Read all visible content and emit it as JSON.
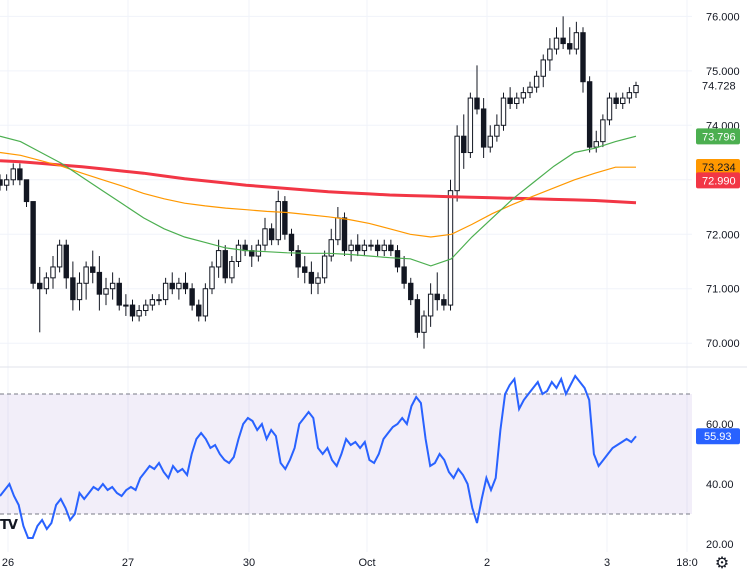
{
  "chart_data": [
    {
      "type": "candlestick",
      "ylim": [
        69.6,
        76.3
      ],
      "y_ticks": [
        "76.000",
        "75.000",
        "74.000",
        "72.000",
        "71.000",
        "70.000"
      ],
      "price_tags": [
        {
          "label": "74.728",
          "value": 74.728,
          "color": "#ffffff",
          "text_color": "#131722"
        },
        {
          "label": "73.796",
          "value": 73.796,
          "color": "#4caf50",
          "text_color": "#ffffff"
        },
        {
          "label": "73.234",
          "value": 73.234,
          "color": "#ff9800",
          "text_color": "#131722"
        },
        {
          "label": "72.990",
          "value": 72.99,
          "color": "#f23645",
          "text_color": "#ffffff"
        }
      ],
      "x_ticks": [
        "26",
        "27",
        "30",
        "Oct",
        "2",
        "3",
        "18:0"
      ],
      "candles": [
        [
          73.0,
          73.1,
          72.8,
          72.9
        ],
        [
          72.9,
          73.1,
          72.8,
          73.0
        ],
        [
          73.0,
          73.3,
          72.9,
          73.2
        ],
        [
          73.2,
          73.3,
          72.9,
          73.0
        ],
        [
          73.0,
          73.0,
          72.5,
          72.6
        ],
        [
          72.6,
          72.6,
          71.0,
          71.1
        ],
        [
          71.1,
          71.4,
          70.2,
          71.0
        ],
        [
          71.0,
          71.3,
          70.9,
          71.2
        ],
        [
          71.2,
          71.6,
          71.0,
          71.4
        ],
        [
          71.4,
          71.9,
          71.3,
          71.8
        ],
        [
          71.8,
          71.9,
          71.0,
          71.2
        ],
        [
          71.2,
          71.5,
          70.6,
          70.8
        ],
        [
          70.8,
          71.3,
          70.6,
          71.1
        ],
        [
          71.1,
          71.5,
          70.8,
          71.4
        ],
        [
          71.4,
          71.7,
          71.1,
          71.3
        ],
        [
          71.3,
          71.6,
          70.6,
          70.9
        ],
        [
          70.9,
          71.2,
          70.7,
          71.0
        ],
        [
          71.0,
          71.3,
          70.8,
          71.1
        ],
        [
          71.1,
          71.2,
          70.6,
          70.7
        ],
        [
          70.7,
          70.9,
          70.5,
          70.7
        ],
        [
          70.7,
          70.8,
          70.4,
          70.5
        ],
        [
          70.5,
          70.7,
          70.4,
          70.6
        ],
        [
          70.6,
          70.8,
          70.5,
          70.7
        ],
        [
          70.7,
          70.9,
          70.6,
          70.8
        ],
        [
          70.8,
          70.9,
          70.7,
          70.8
        ],
        [
          70.8,
          71.2,
          70.7,
          71.1
        ],
        [
          71.1,
          71.3,
          70.9,
          71.0
        ],
        [
          71.0,
          71.2,
          70.8,
          71.1
        ],
        [
          71.1,
          71.3,
          70.9,
          71.0
        ],
        [
          71.0,
          71.1,
          70.6,
          70.7
        ],
        [
          70.7,
          70.8,
          70.4,
          70.5
        ],
        [
          70.5,
          71.1,
          70.4,
          71.0
        ],
        [
          71.0,
          71.5,
          70.9,
          71.4
        ],
        [
          71.4,
          71.9,
          71.2,
          71.7
        ],
        [
          71.7,
          71.8,
          71.1,
          71.2
        ],
        [
          71.2,
          71.6,
          71.1,
          71.5
        ],
        [
          71.5,
          71.9,
          71.4,
          71.8
        ],
        [
          71.8,
          71.9,
          71.6,
          71.7
        ],
        [
          71.7,
          71.8,
          71.4,
          71.6
        ],
        [
          71.6,
          71.9,
          71.5,
          71.8
        ],
        [
          71.8,
          72.3,
          71.7,
          72.1
        ],
        [
          72.1,
          72.2,
          71.8,
          71.9
        ],
        [
          71.9,
          72.8,
          71.8,
          72.6
        ],
        [
          72.6,
          72.7,
          71.9,
          72.0
        ],
        [
          72.0,
          72.1,
          71.6,
          71.7
        ],
        [
          71.7,
          71.8,
          71.2,
          71.4
        ],
        [
          71.4,
          71.6,
          71.1,
          71.3
        ],
        [
          71.3,
          71.5,
          70.9,
          71.1
        ],
        [
          71.1,
          71.3,
          70.9,
          71.2
        ],
        [
          71.2,
          71.7,
          71.1,
          71.6
        ],
        [
          71.6,
          72.1,
          71.5,
          71.9
        ],
        [
          71.9,
          72.5,
          71.8,
          72.3
        ],
        [
          72.3,
          72.4,
          71.6,
          71.7
        ],
        [
          71.7,
          71.9,
          71.5,
          71.8
        ],
        [
          71.8,
          72.0,
          71.6,
          71.7
        ],
        [
          71.7,
          71.9,
          71.6,
          71.8
        ],
        [
          71.8,
          71.9,
          71.7,
          71.8
        ],
        [
          71.8,
          71.9,
          71.6,
          71.7
        ],
        [
          71.7,
          71.9,
          71.6,
          71.8
        ],
        [
          71.8,
          71.9,
          71.6,
          71.7
        ],
        [
          71.7,
          71.8,
          71.3,
          71.4
        ],
        [
          71.4,
          71.6,
          71.0,
          71.1
        ],
        [
          71.1,
          71.2,
          70.7,
          70.8
        ],
        [
          70.8,
          70.9,
          70.1,
          70.2
        ],
        [
          70.2,
          70.6,
          69.9,
          70.5
        ],
        [
          70.5,
          71.1,
          70.3,
          70.9
        ],
        [
          70.9,
          71.3,
          70.6,
          70.8
        ],
        [
          70.8,
          70.9,
          70.6,
          70.7
        ],
        [
          70.7,
          73.0,
          70.6,
          72.8
        ],
        [
          72.8,
          74.0,
          72.6,
          73.8
        ],
        [
          73.8,
          74.2,
          73.2,
          73.5
        ],
        [
          73.5,
          74.6,
          73.4,
          74.5
        ],
        [
          74.5,
          75.1,
          74.2,
          74.3
        ],
        [
          74.3,
          74.5,
          73.4,
          73.6
        ],
        [
          73.6,
          74.0,
          73.5,
          73.8
        ],
        [
          73.8,
          74.2,
          73.7,
          74.0
        ],
        [
          74.0,
          74.6,
          73.9,
          74.5
        ],
        [
          74.5,
          74.7,
          74.3,
          74.4
        ],
        [
          74.4,
          74.6,
          74.3,
          74.5
        ],
        [
          74.5,
          74.7,
          74.4,
          74.6
        ],
        [
          74.6,
          74.8,
          74.5,
          74.7
        ],
        [
          74.7,
          75.0,
          74.6,
          74.9
        ],
        [
          74.9,
          75.3,
          74.7,
          75.2
        ],
        [
          75.2,
          75.6,
          75.0,
          75.4
        ],
        [
          75.4,
          75.8,
          75.3,
          75.6
        ],
        [
          75.6,
          76.0,
          75.4,
          75.5
        ],
        [
          75.5,
          75.8,
          75.3,
          75.4
        ],
        [
          75.4,
          75.9,
          75.3,
          75.7
        ],
        [
          75.7,
          75.8,
          74.6,
          74.8
        ],
        [
          74.8,
          74.9,
          73.5,
          73.6
        ],
        [
          73.6,
          73.9,
          73.5,
          73.7
        ],
        [
          73.7,
          74.2,
          73.6,
          74.1
        ],
        [
          74.1,
          74.6,
          74.0,
          74.5
        ],
        [
          74.5,
          74.6,
          74.3,
          74.4
        ],
        [
          74.4,
          74.6,
          74.3,
          74.5
        ],
        [
          74.5,
          74.7,
          74.4,
          74.6
        ],
        [
          74.6,
          74.8,
          74.5,
          74.73
        ]
      ],
      "series": [
        {
          "color": "#f23645",
          "values": [
            73.35,
            73.33,
            73.3,
            73.27,
            73.24,
            73.2,
            73.16,
            73.12,
            73.07,
            73.02,
            72.98,
            72.94,
            72.9,
            72.87,
            72.84,
            72.81,
            72.78,
            72.76,
            72.74,
            72.72,
            72.71,
            72.7,
            72.69,
            72.68,
            72.67,
            72.66,
            72.65,
            72.64,
            72.63,
            72.62,
            72.6,
            72.58
          ]
        },
        {
          "color": "#ff9800",
          "values": [
            73.5,
            73.45,
            73.35,
            73.25,
            73.12,
            73.0,
            72.88,
            72.75,
            72.65,
            72.57,
            72.52,
            72.48,
            72.45,
            72.42,
            72.4,
            72.36,
            72.32,
            72.27,
            72.2,
            72.1,
            72.0,
            71.95,
            72.0,
            72.18,
            72.38,
            72.55,
            72.7,
            72.85,
            73.0,
            73.12,
            73.23,
            73.23
          ]
        },
        {
          "color": "#4caf50",
          "values": [
            73.8,
            73.7,
            73.5,
            73.3,
            73.05,
            72.8,
            72.55,
            72.3,
            72.1,
            71.95,
            71.85,
            71.75,
            71.7,
            71.68,
            71.66,
            71.65,
            71.65,
            71.63,
            71.6,
            71.57,
            71.55,
            71.42,
            71.55,
            71.95,
            72.3,
            72.65,
            72.95,
            73.25,
            73.5,
            73.58,
            73.7,
            73.8
          ]
        }
      ]
    },
    {
      "type": "line",
      "ylim": [
        18,
        78
      ],
      "y_ticks": [
        "60.00",
        "40.00",
        "20.00"
      ],
      "bands": [
        30,
        70
      ],
      "current": {
        "label": "55.93",
        "value": 55.93,
        "color": "#2962ff"
      },
      "series": [
        {
          "color": "#2962ff",
          "values": [
            36,
            38,
            40,
            36,
            33,
            26,
            22,
            22,
            26,
            28,
            25,
            27,
            33,
            35,
            32,
            28,
            30,
            37,
            35,
            37,
            39,
            38,
            40,
            38,
            39,
            37,
            36,
            38,
            39,
            38,
            42,
            44,
            46,
            45,
            47,
            44,
            42,
            46,
            44,
            45,
            43,
            50,
            55,
            57,
            55,
            52,
            53,
            50,
            48,
            47,
            49,
            55,
            60,
            62,
            61,
            58,
            60,
            55,
            58,
            56,
            47,
            45,
            48,
            52,
            60,
            62,
            64,
            62,
            52,
            50,
            52,
            48,
            46,
            50,
            55,
            53,
            54,
            52,
            54,
            48,
            47,
            50,
            55,
            57,
            59,
            60,
            62,
            60,
            66,
            69,
            67,
            55,
            46,
            47,
            50,
            48,
            44,
            42,
            45,
            43,
            40,
            32,
            27,
            35,
            42,
            38,
            42,
            58,
            70,
            73,
            75,
            65,
            68,
            70,
            72,
            74,
            70,
            71,
            74,
            72,
            75,
            70,
            73,
            76,
            74,
            72,
            68,
            50,
            46,
            48,
            50,
            52,
            53,
            54,
            55,
            54,
            55.93
          ]
        }
      ]
    }
  ],
  "icons": {
    "gear": "gear-icon"
  }
}
